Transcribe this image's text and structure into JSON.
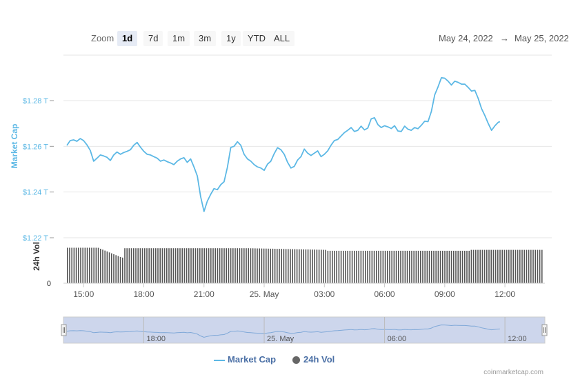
{
  "toolbar": {
    "zoom_label": "Zoom",
    "buttons": [
      "1d",
      "7d",
      "1m",
      "3m",
      "1y",
      "YTD",
      "ALL"
    ],
    "active": "1d",
    "range_from": "May 24, 2022",
    "range_arrow": "→",
    "range_to": "May 25, 2022"
  },
  "colors": {
    "line": "#5cb8e5",
    "volume": "#555555",
    "navigator_fill": "#cdd6ec",
    "axis_blue": "#5cb8e5"
  },
  "credit": "coinmarketcap.com",
  "chart_data": {
    "type": "line",
    "ylabel": "Market Cap",
    "vol_label": "24h Vol",
    "yticks": [
      "$1.22 T",
      "$1.24 T",
      "$1.26 T",
      "$1.28 T"
    ],
    "ytick_values": [
      1.22,
      1.24,
      1.26,
      1.28
    ],
    "vol_tick": "0",
    "ylim": [
      1.22,
      1.295
    ],
    "xlim": [
      "14:10",
      "13:45"
    ],
    "xticks": [
      {
        "label": "15:00",
        "t": "15:00"
      },
      {
        "label": "18:00",
        "t": "18:00"
      },
      {
        "label": "21:00",
        "t": "21:00"
      },
      {
        "label": "25. May",
        "t": "00:00"
      },
      {
        "label": "03:00",
        "t": "03:00"
      },
      {
        "label": "06:00",
        "t": "06:00"
      },
      {
        "label": "09:00",
        "t": "09:00"
      },
      {
        "label": "12:00",
        "t": "12:00"
      }
    ],
    "nav_ticks": [
      {
        "label": "18:00",
        "t": "18:00"
      },
      {
        "label": "25. May",
        "t": "00:00"
      },
      {
        "label": "06:00",
        "t": "06:00"
      },
      {
        "label": "12:00",
        "t": "12:00"
      }
    ],
    "series": [
      {
        "name": "Market Cap",
        "points": [
          [
            "14:10",
            1.2604
          ],
          [
            "14:20",
            1.2625
          ],
          [
            "14:30",
            1.2628
          ],
          [
            "14:40",
            1.2622
          ],
          [
            "14:50",
            1.2634
          ],
          [
            "15:00",
            1.2625
          ],
          [
            "15:10",
            1.2606
          ],
          [
            "15:20",
            1.2582
          ],
          [
            "15:30",
            1.2535
          ],
          [
            "15:40",
            1.2548
          ],
          [
            "15:50",
            1.2562
          ],
          [
            "16:00",
            1.2558
          ],
          [
            "16:10",
            1.2552
          ],
          [
            "16:20",
            1.2538
          ],
          [
            "16:30",
            1.2562
          ],
          [
            "16:40",
            1.2575
          ],
          [
            "16:50",
            1.2565
          ],
          [
            "17:00",
            1.2573
          ],
          [
            "17:10",
            1.2578
          ],
          [
            "17:20",
            1.2585
          ],
          [
            "17:30",
            1.2605
          ],
          [
            "17:40",
            1.2617
          ],
          [
            "17:50",
            1.2596
          ],
          [
            "18:00",
            1.2578
          ],
          [
            "18:10",
            1.2565
          ],
          [
            "18:20",
            1.2562
          ],
          [
            "18:30",
            1.2555
          ],
          [
            "18:40",
            1.2548
          ],
          [
            "18:50",
            1.2535
          ],
          [
            "19:00",
            1.254
          ],
          [
            "19:10",
            1.2533
          ],
          [
            "19:20",
            1.2527
          ],
          [
            "19:30",
            1.252
          ],
          [
            "19:40",
            1.2535
          ],
          [
            "19:50",
            1.2545
          ],
          [
            "20:00",
            1.255
          ],
          [
            "20:10",
            1.253
          ],
          [
            "20:20",
            1.2545
          ],
          [
            "20:30",
            1.251
          ],
          [
            "20:40",
            1.247
          ],
          [
            "20:50",
            1.238
          ],
          [
            "21:00",
            1.2315
          ],
          [
            "21:10",
            1.236
          ],
          [
            "21:20",
            1.239
          ],
          [
            "21:30",
            1.2415
          ],
          [
            "21:40",
            1.241
          ],
          [
            "21:50",
            1.2432
          ],
          [
            "22:00",
            1.2445
          ],
          [
            "22:10",
            1.2508
          ],
          [
            "22:20",
            1.2595
          ],
          [
            "22:30",
            1.26
          ],
          [
            "22:40",
            1.262
          ],
          [
            "22:50",
            1.2605
          ],
          [
            "23:00",
            1.2565
          ],
          [
            "23:10",
            1.2545
          ],
          [
            "23:20",
            1.2535
          ],
          [
            "23:30",
            1.252
          ],
          [
            "23:40",
            1.251
          ],
          [
            "23:50",
            1.2505
          ],
          [
            "00:00",
            1.2495
          ],
          [
            "00:10",
            1.2522
          ],
          [
            "00:20",
            1.2535
          ],
          [
            "00:30",
            1.2568
          ],
          [
            "00:40",
            1.2594
          ],
          [
            "00:50",
            1.2585
          ],
          [
            "01:00",
            1.2565
          ],
          [
            "01:10",
            1.253
          ],
          [
            "01:20",
            1.2505
          ],
          [
            "01:30",
            1.2512
          ],
          [
            "01:40",
            1.254
          ],
          [
            "01:50",
            1.2555
          ],
          [
            "02:00",
            1.2588
          ],
          [
            "02:10",
            1.257
          ],
          [
            "02:20",
            1.256
          ],
          [
            "02:30",
            1.257
          ],
          [
            "02:40",
            1.258
          ],
          [
            "02:50",
            1.2555
          ],
          [
            "03:00",
            1.2565
          ],
          [
            "03:10",
            1.258
          ],
          [
            "03:20",
            1.2605
          ],
          [
            "03:30",
            1.2625
          ],
          [
            "03:40",
            1.263
          ],
          [
            "03:50",
            1.2645
          ],
          [
            "04:00",
            1.266
          ],
          [
            "04:10",
            1.267
          ],
          [
            "04:20",
            1.2682
          ],
          [
            "04:30",
            1.2665
          ],
          [
            "04:40",
            1.267
          ],
          [
            "04:50",
            1.2688
          ],
          [
            "05:00",
            1.2672
          ],
          [
            "05:10",
            1.268
          ],
          [
            "05:20",
            1.272
          ],
          [
            "05:30",
            1.2725
          ],
          [
            "05:40",
            1.2695
          ],
          [
            "05:50",
            1.2682
          ],
          [
            "06:00",
            1.269
          ],
          [
            "06:10",
            1.2685
          ],
          [
            "06:20",
            1.2678
          ],
          [
            "06:30",
            1.269
          ],
          [
            "06:40",
            1.2667
          ],
          [
            "06:50",
            1.2665
          ],
          [
            "07:00",
            1.2688
          ],
          [
            "07:10",
            1.2675
          ],
          [
            "07:20",
            1.267
          ],
          [
            "07:30",
            1.2682
          ],
          [
            "07:40",
            1.2677
          ],
          [
            "07:50",
            1.2692
          ],
          [
            "08:00",
            1.271
          ],
          [
            "08:10",
            1.2708
          ],
          [
            "08:20",
            1.2752
          ],
          [
            "08:30",
            1.2825
          ],
          [
            "08:40",
            1.286
          ],
          [
            "08:50",
            1.29
          ],
          [
            "09:00",
            1.2898
          ],
          [
            "09:10",
            1.2885
          ],
          [
            "09:20",
            1.2868
          ],
          [
            "09:30",
            1.2885
          ],
          [
            "09:40",
            1.288
          ],
          [
            "09:50",
            1.2872
          ],
          [
            "10:00",
            1.2872
          ],
          [
            "10:10",
            1.2858
          ],
          [
            "10:20",
            1.2842
          ],
          [
            "10:30",
            1.2845
          ],
          [
            "10:40",
            1.281
          ],
          [
            "10:50",
            1.2765
          ],
          [
            "11:00",
            1.2735
          ],
          [
            "11:10",
            1.27
          ],
          [
            "11:20",
            1.267
          ],
          [
            "11:30",
            1.269
          ],
          [
            "11:40",
            1.2705
          ],
          [
            "11:45",
            1.2708
          ]
        ]
      },
      {
        "name": "24h Vol",
        "relative_levels_early": 0.83,
        "relative_levels_dip": 0.6,
        "relative_levels_mid": 0.82,
        "relative_levels_late": 0.76
      }
    ]
  }
}
